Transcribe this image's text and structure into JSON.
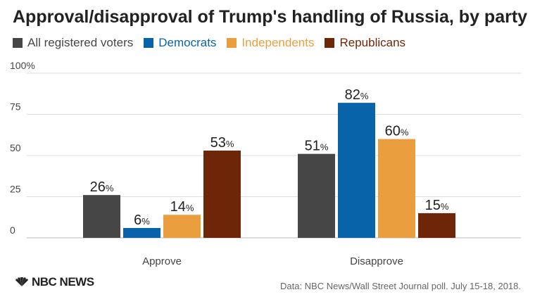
{
  "title": "Approval/disapproval of Trump's handling of Russia, by party",
  "source": "Data: NBC News/Wall Street Journal poll. July 15-18, 2018.",
  "logo_text": "NBC NEWS",
  "colors": {
    "All registered voters": "#464646",
    "Democrats": "#0863a8",
    "Independents": "#eb9e3d",
    "Republicans": "#6e2608",
    "grid": "#dddddd",
    "axis_text": "#444444"
  },
  "chart_data": {
    "type": "bar",
    "title": "Approval/disapproval of Trump's handling of Russia, by party",
    "categories": [
      "Approve",
      "Disapprove"
    ],
    "series": [
      {
        "name": "All registered voters",
        "values": [
          26,
          51
        ]
      },
      {
        "name": "Democrats",
        "values": [
          6,
          82
        ]
      },
      {
        "name": "Independents",
        "values": [
          14,
          60
        ]
      },
      {
        "name": "Republicans",
        "values": [
          53,
          15
        ]
      }
    ],
    "value_suffix": "%",
    "ylim": [
      0,
      100
    ],
    "yticks": [
      "0",
      "25",
      "50",
      "75",
      "100%"
    ],
    "ytick_values": [
      0,
      25,
      50,
      75,
      100
    ],
    "xlabel": "",
    "ylabel": "",
    "grid": true,
    "legend_position": "top-left"
  }
}
